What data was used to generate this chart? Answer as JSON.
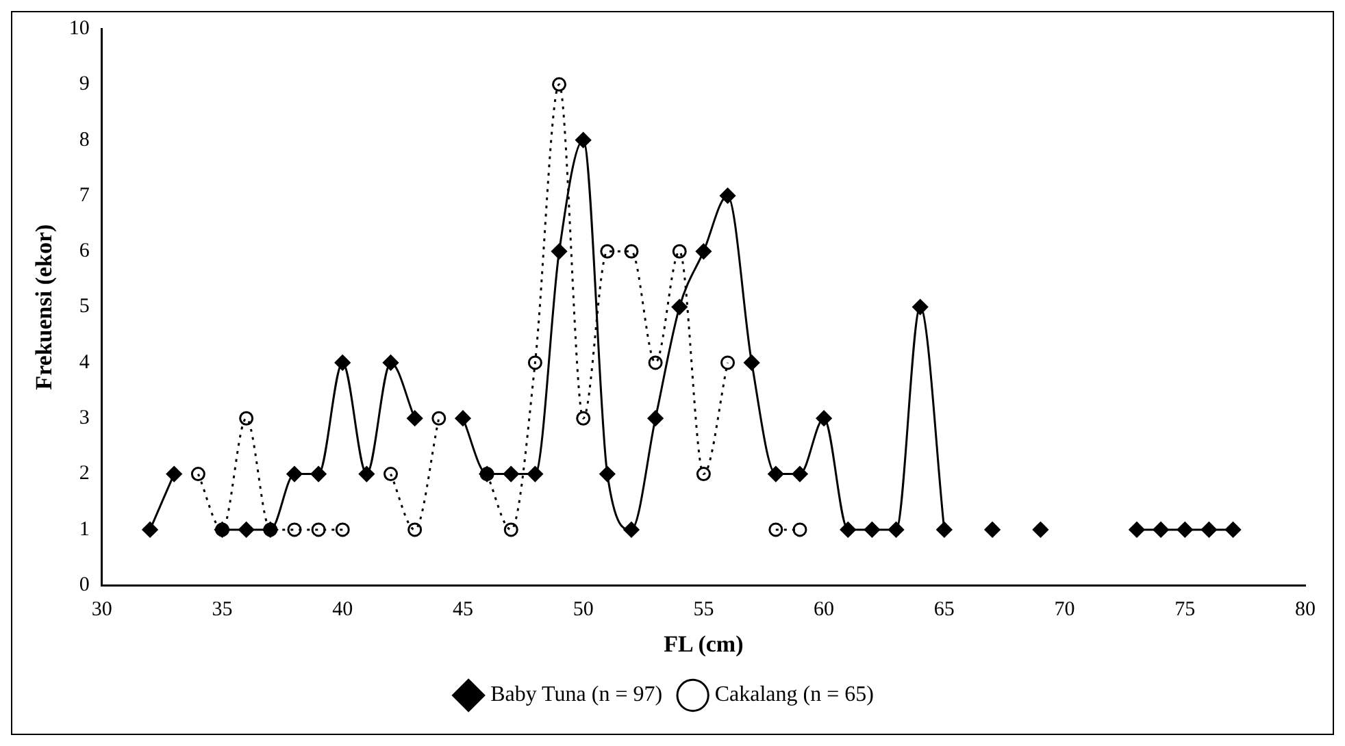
{
  "chart_data": {
    "type": "line",
    "xlabel": "FL (cm)",
    "ylabel": "Frekuensi (ekor)",
    "x": [
      32,
      33,
      34,
      35,
      36,
      37,
      38,
      39,
      40,
      41,
      42,
      43,
      44,
      45,
      46,
      47,
      48,
      49,
      50,
      51,
      52,
      53,
      54,
      55,
      56,
      57,
      58,
      59,
      60,
      61,
      62,
      63,
      64,
      65,
      66,
      67,
      68,
      69,
      70,
      71,
      72,
      73,
      74,
      75,
      76,
      77
    ],
    "series": [
      {
        "name": "Baby Tuna (n = 97)",
        "color": "#000000",
        "marker": "diamond",
        "line_style": "solid",
        "values": [
          1,
          2,
          null,
          1,
          1,
          1,
          2,
          2,
          4,
          2,
          4,
          3,
          null,
          3,
          2,
          2,
          2,
          6,
          8,
          2,
          1,
          3,
          5,
          6,
          7,
          4,
          2,
          2,
          3,
          1,
          1,
          1,
          5,
          1,
          null,
          1,
          null,
          1,
          null,
          null,
          null,
          1,
          1,
          1,
          1,
          1
        ]
      },
      {
        "name": "Cakalang (n = 65)",
        "color": "#000000",
        "marker": "circle",
        "line_style": "dotted",
        "values": [
          null,
          null,
          2,
          1,
          3,
          1,
          1,
          1,
          1,
          null,
          2,
          1,
          3,
          null,
          2,
          1,
          4,
          9,
          3,
          6,
          6,
          4,
          6,
          2,
          4,
          null,
          1,
          1,
          null,
          null,
          null,
          null,
          null,
          null,
          null,
          null,
          null,
          null,
          null,
          null,
          null,
          null,
          null,
          null,
          null,
          null
        ]
      }
    ],
    "xlim": [
      30,
      80
    ],
    "xticks": [
      30,
      35,
      40,
      45,
      50,
      55,
      60,
      65,
      70,
      75,
      80
    ],
    "ylim": [
      0,
      10
    ],
    "yticks": [
      0,
      1,
      2,
      3,
      4,
      5,
      6,
      7,
      8,
      9,
      10
    ],
    "grid": false,
    "legend": "bottom"
  }
}
